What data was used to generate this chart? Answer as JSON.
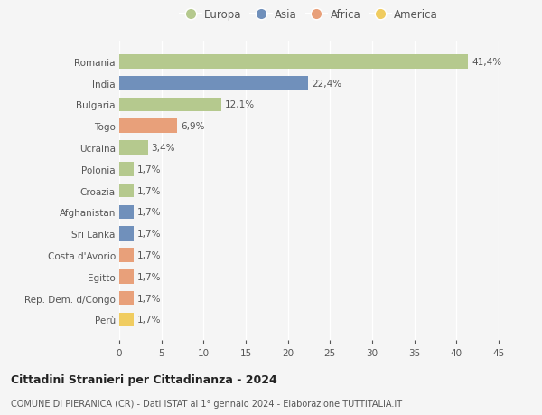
{
  "countries": [
    "Romania",
    "India",
    "Bulgaria",
    "Togo",
    "Ucraina",
    "Polonia",
    "Croazia",
    "Afghanistan",
    "Sri Lanka",
    "Costa d'Avorio",
    "Egitto",
    "Rep. Dem. d/Congo",
    "Perù"
  ],
  "values": [
    41.4,
    22.4,
    12.1,
    6.9,
    3.4,
    1.7,
    1.7,
    1.7,
    1.7,
    1.7,
    1.7,
    1.7,
    1.7
  ],
  "labels": [
    "41,4%",
    "22,4%",
    "12,1%",
    "6,9%",
    "3,4%",
    "1,7%",
    "1,7%",
    "1,7%",
    "1,7%",
    "1,7%",
    "1,7%",
    "1,7%",
    "1,7%"
  ],
  "continents": [
    "Europa",
    "Asia",
    "Europa",
    "Africa",
    "Europa",
    "Europa",
    "Europa",
    "Asia",
    "Asia",
    "Africa",
    "Africa",
    "Africa",
    "America"
  ],
  "colors": {
    "Europa": "#b5c98e",
    "Asia": "#7090bb",
    "Africa": "#e8a07a",
    "America": "#f0cc60"
  },
  "legend_order": [
    "Europa",
    "Asia",
    "Africa",
    "America"
  ],
  "xlim": [
    0,
    45
  ],
  "xticks": [
    0,
    5,
    10,
    15,
    20,
    25,
    30,
    35,
    40,
    45
  ],
  "title": "Cittadini Stranieri per Cittadinanza - 2024",
  "subtitle": "COMUNE DI PIERANICA (CR) - Dati ISTAT al 1° gennaio 2024 - Elaborazione TUTTITALIA.IT",
  "bg_color": "#f5f5f5",
  "grid_color": "#ffffff"
}
